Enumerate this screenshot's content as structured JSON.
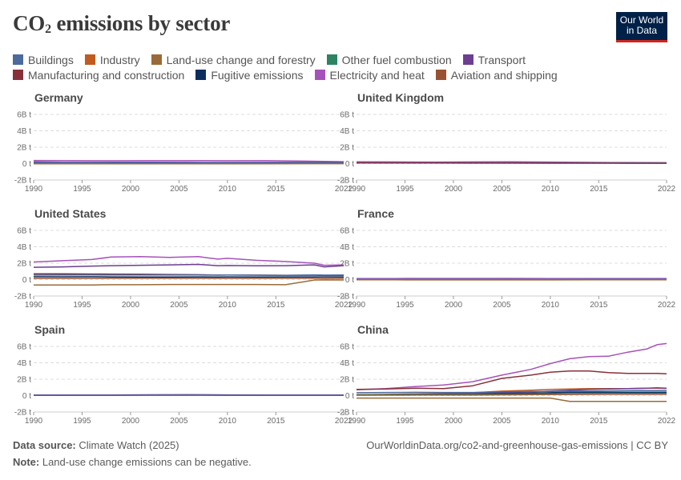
{
  "title_main": "CO",
  "title_sub": "2",
  "title_rest": " emissions by sector",
  "logo": {
    "line1": "Our World",
    "line2": "in Data"
  },
  "legend": [
    {
      "name": "Buildings",
      "color": "#4c6a9c"
    },
    {
      "name": "Industry",
      "color": "#c15b1e"
    },
    {
      "name": "Land-use change and forestry",
      "color": "#9a6b38"
    },
    {
      "name": "Other fuel combustion",
      "color": "#2c8465"
    },
    {
      "name": "Transport",
      "color": "#6d3e91"
    },
    {
      "name": "Manufacturing and construction",
      "color": "#883039"
    },
    {
      "name": "Fugitive emissions",
      "color": "#0c2e5f"
    },
    {
      "name": "Electricity and heat",
      "color": "#a652ba"
    },
    {
      "name": "Aviation and shipping",
      "color": "#995231"
    }
  ],
  "footer": {
    "source_label": "Data source:",
    "source_text": "Climate Watch (2025)",
    "note_label": "Note:",
    "note_text": "Land-use change emissions can be negative.",
    "url": "OurWorldinData.org/co2-and-greenhouse-gas-emissions | CC BY"
  },
  "chart_data": [
    {
      "type": "line",
      "title": "Germany",
      "unit": "t",
      "ylim": [
        -2,
        6
      ],
      "yticks": [
        "-2B t",
        "0 t",
        "2B t",
        "4B t",
        "6B t"
      ],
      "xticks": [
        "1990",
        "1995",
        "2000",
        "2005",
        "2010",
        "2015",
        "2022"
      ],
      "x": [
        1990,
        1994,
        1998,
        2002,
        2006,
        2010,
        2014,
        2018,
        2022
      ],
      "series": [
        {
          "name": "Electricity and heat",
          "color": "#a652ba",
          "values": [
            0.38,
            0.36,
            0.35,
            0.36,
            0.37,
            0.35,
            0.36,
            0.3,
            0.23
          ]
        },
        {
          "name": "Manufacturing and construction",
          "color": "#883039",
          "values": [
            0.2,
            0.16,
            0.14,
            0.13,
            0.13,
            0.13,
            0.12,
            0.12,
            0.11
          ]
        },
        {
          "name": "Transport",
          "color": "#6d3e91",
          "values": [
            0.16,
            0.17,
            0.18,
            0.17,
            0.16,
            0.15,
            0.16,
            0.16,
            0.15
          ]
        },
        {
          "name": "Buildings",
          "color": "#4c6a9c",
          "values": [
            0.13,
            0.14,
            0.13,
            0.13,
            0.1,
            0.1,
            0.09,
            0.09,
            0.09
          ]
        },
        {
          "name": "Land-use change and forestry",
          "color": "#9a6b38",
          "values": [
            -0.02,
            -0.03,
            -0.03,
            -0.03,
            -0.02,
            -0.02,
            -0.02,
            -0.01,
            -0.01
          ]
        }
      ]
    },
    {
      "type": "line",
      "title": "United Kingdom",
      "unit": "t",
      "ylim": [
        -2,
        6
      ],
      "yticks": [
        "-2B t",
        "0 t",
        "2B t",
        "4B t",
        "6B t"
      ],
      "xticks": [
        "1990",
        "1995",
        "2000",
        "2005",
        "2010",
        "2015",
        "2022"
      ],
      "x": [
        1990,
        1994,
        1998,
        2002,
        2006,
        2010,
        2014,
        2018,
        2022
      ],
      "series": [
        {
          "name": "Electricity and heat",
          "color": "#a652ba",
          "values": [
            0.22,
            0.2,
            0.19,
            0.2,
            0.21,
            0.19,
            0.15,
            0.1,
            0.07
          ]
        },
        {
          "name": "Transport",
          "color": "#6d3e91",
          "values": [
            0.12,
            0.12,
            0.13,
            0.13,
            0.13,
            0.12,
            0.12,
            0.12,
            0.11
          ]
        },
        {
          "name": "Buildings",
          "color": "#4c6a9c",
          "values": [
            0.09,
            0.09,
            0.09,
            0.09,
            0.08,
            0.08,
            0.07,
            0.07,
            0.07
          ]
        },
        {
          "name": "Manufacturing and construction",
          "color": "#883039",
          "values": [
            0.09,
            0.08,
            0.07,
            0.06,
            0.06,
            0.05,
            0.05,
            0.04,
            0.04
          ]
        }
      ]
    },
    {
      "type": "line",
      "title": "United States",
      "unit": "t",
      "ylim": [
        -2,
        6
      ],
      "yticks": [
        "-2B t",
        "0 t",
        "2B t",
        "4B t",
        "6B t"
      ],
      "xticks": [
        "1990",
        "1995",
        "2000",
        "2005",
        "2010",
        "2015",
        "2022"
      ],
      "x": [
        1990,
        1993,
        1996,
        1998,
        2001,
        2004,
        2007,
        2009,
        2010,
        2013,
        2016,
        2019,
        2020,
        2022
      ],
      "series": [
        {
          "name": "Electricity and heat",
          "color": "#a652ba",
          "values": [
            2.15,
            2.3,
            2.45,
            2.75,
            2.8,
            2.7,
            2.8,
            2.5,
            2.6,
            2.35,
            2.2,
            2.0,
            1.75,
            1.8
          ]
        },
        {
          "name": "Transport",
          "color": "#6d3e91",
          "values": [
            1.5,
            1.55,
            1.65,
            1.7,
            1.75,
            1.8,
            1.85,
            1.7,
            1.72,
            1.68,
            1.7,
            1.8,
            1.55,
            1.7
          ]
        },
        {
          "name": "Manufacturing and construction",
          "color": "#883039",
          "values": [
            0.7,
            0.7,
            0.68,
            0.67,
            0.65,
            0.62,
            0.6,
            0.55,
            0.57,
            0.55,
            0.53,
            0.53,
            0.5,
            0.5
          ]
        },
        {
          "name": "Buildings",
          "color": "#4c6a9c",
          "values": [
            0.55,
            0.57,
            0.58,
            0.56,
            0.56,
            0.57,
            0.56,
            0.55,
            0.56,
            0.54,
            0.52,
            0.58,
            0.55,
            0.57
          ]
        },
        {
          "name": "Fugitive emissions",
          "color": "#0c2e5f",
          "values": [
            0.35,
            0.34,
            0.35,
            0.33,
            0.32,
            0.32,
            0.33,
            0.32,
            0.33,
            0.32,
            0.33,
            0.33,
            0.31,
            0.32
          ]
        },
        {
          "name": "Aviation and shipping",
          "color": "#995231",
          "values": [
            0.15,
            0.15,
            0.16,
            0.17,
            0.18,
            0.18,
            0.18,
            0.16,
            0.16,
            0.16,
            0.17,
            0.18,
            0.12,
            0.15
          ]
        },
        {
          "name": "Land-use change and forestry",
          "color": "#9a6b38",
          "values": [
            -0.65,
            -0.65,
            -0.65,
            -0.62,
            -0.62,
            -0.6,
            -0.6,
            -0.6,
            -0.6,
            -0.6,
            -0.62,
            -0.05,
            -0.05,
            -0.05
          ]
        }
      ]
    },
    {
      "type": "line",
      "title": "France",
      "unit": "t",
      "ylim": [
        -2,
        6
      ],
      "yticks": [
        "-2B t",
        "0 t",
        "2B t",
        "4B t",
        "6B t"
      ],
      "xticks": [
        "1990",
        "1995",
        "2000",
        "2005",
        "2010",
        "2015",
        "2022"
      ],
      "x": [
        1990,
        1994,
        1998,
        2002,
        2006,
        2010,
        2014,
        2018,
        2022
      ],
      "series": [
        {
          "name": "Transport",
          "color": "#6d3e91",
          "values": [
            0.12,
            0.13,
            0.14,
            0.14,
            0.14,
            0.13,
            0.13,
            0.13,
            0.12
          ]
        },
        {
          "name": "Buildings",
          "color": "#4c6a9c",
          "values": [
            0.09,
            0.09,
            0.1,
            0.1,
            0.09,
            0.09,
            0.07,
            0.07,
            0.06
          ]
        },
        {
          "name": "Electricity and heat",
          "color": "#a652ba",
          "values": [
            0.05,
            0.05,
            0.05,
            0.05,
            0.05,
            0.05,
            0.03,
            0.03,
            0.03
          ]
        },
        {
          "name": "Land-use change and forestry",
          "color": "#9a6b38",
          "values": [
            -0.02,
            -0.03,
            -0.04,
            -0.04,
            -0.04,
            -0.04,
            -0.03,
            -0.02,
            -0.02
          ]
        }
      ]
    },
    {
      "type": "line",
      "title": "Spain",
      "unit": "t",
      "ylim": [
        -2,
        6
      ],
      "yticks": [
        "-2B t",
        "0 t",
        "2B t",
        "4B t",
        "6B t"
      ],
      "xticks": [
        "1990",
        "1995",
        "2000",
        "2005",
        "2010",
        "2015",
        "2022"
      ],
      "x": [
        1990,
        1994,
        1998,
        2002,
        2006,
        2010,
        2014,
        2018,
        2022
      ],
      "series": [
        {
          "name": "Electricity and heat",
          "color": "#a652ba",
          "values": [
            0.07,
            0.07,
            0.08,
            0.1,
            0.11,
            0.07,
            0.07,
            0.06,
            0.05
          ]
        },
        {
          "name": "Transport",
          "color": "#6d3e91",
          "values": [
            0.06,
            0.07,
            0.08,
            0.09,
            0.1,
            0.09,
            0.08,
            0.08,
            0.08
          ]
        },
        {
          "name": "Buildings",
          "color": "#4c6a9c",
          "values": [
            0.03,
            0.03,
            0.03,
            0.04,
            0.04,
            0.03,
            0.03,
            0.03,
            0.03
          ]
        }
      ]
    },
    {
      "type": "line",
      "title": "China",
      "unit": "t",
      "ylim": [
        -2,
        6
      ],
      "yticks": [
        "-2B t",
        "0 t",
        "2B t",
        "4B t",
        "6B t"
      ],
      "xticks": [
        "1990",
        "1995",
        "2000",
        "2005",
        "2010",
        "2015",
        "2022"
      ],
      "x": [
        1990,
        1993,
        1996,
        1999,
        2002,
        2005,
        2008,
        2010,
        2012,
        2014,
        2016,
        2018,
        2020,
        2021,
        2022
      ],
      "series": [
        {
          "name": "Electricity and heat",
          "color": "#a652ba",
          "values": [
            0.7,
            0.85,
            1.1,
            1.3,
            1.7,
            2.5,
            3.2,
            3.9,
            4.5,
            4.75,
            4.8,
            5.3,
            5.7,
            6.2,
            6.35
          ]
        },
        {
          "name": "Manufacturing and construction",
          "color": "#883039",
          "values": [
            0.75,
            0.8,
            0.9,
            0.85,
            1.2,
            2.1,
            2.5,
            2.85,
            3.0,
            3.0,
            2.8,
            2.7,
            2.7,
            2.7,
            2.65
          ]
        },
        {
          "name": "Industry",
          "color": "#c15b1e",
          "values": [
            0.1,
            0.15,
            0.2,
            0.25,
            0.35,
            0.55,
            0.65,
            0.75,
            0.8,
            0.85,
            0.85,
            0.85,
            0.9,
            0.9,
            0.88
          ]
        },
        {
          "name": "Transport",
          "color": "#6d3e91",
          "values": [
            0.1,
            0.13,
            0.15,
            0.2,
            0.25,
            0.35,
            0.45,
            0.55,
            0.65,
            0.75,
            0.8,
            0.85,
            0.9,
            0.95,
            0.9
          ]
        },
        {
          "name": "Buildings",
          "color": "#4c6a9c",
          "values": [
            0.35,
            0.38,
            0.4,
            0.38,
            0.38,
            0.45,
            0.5,
            0.52,
            0.55,
            0.55,
            0.58,
            0.6,
            0.62,
            0.62,
            0.62
          ]
        },
        {
          "name": "Fugitive emissions",
          "color": "#0c2e5f",
          "values": [
            0.1,
            0.12,
            0.14,
            0.15,
            0.18,
            0.25,
            0.3,
            0.35,
            0.4,
            0.4,
            0.4,
            0.4,
            0.42,
            0.42,
            0.42
          ]
        },
        {
          "name": "Other fuel combustion",
          "color": "#2c8465",
          "values": [
            0.12,
            0.14,
            0.16,
            0.15,
            0.16,
            0.18,
            0.2,
            0.22,
            0.24,
            0.25,
            0.25,
            0.26,
            0.26,
            0.27,
            0.27
          ]
        },
        {
          "name": "Aviation and shipping",
          "color": "#995231",
          "values": [
            0.05,
            0.06,
            0.07,
            0.07,
            0.08,
            0.1,
            0.12,
            0.14,
            0.15,
            0.16,
            0.17,
            0.18,
            0.18,
            0.18,
            0.18
          ]
        },
        {
          "name": "Land-use change and forestry",
          "color": "#9a6b38",
          "values": [
            -0.3,
            -0.3,
            -0.3,
            -0.3,
            -0.3,
            -0.3,
            -0.3,
            -0.3,
            -0.7,
            -0.7,
            -0.7,
            -0.7,
            -0.7,
            -0.7,
            -0.7
          ]
        }
      ]
    }
  ]
}
